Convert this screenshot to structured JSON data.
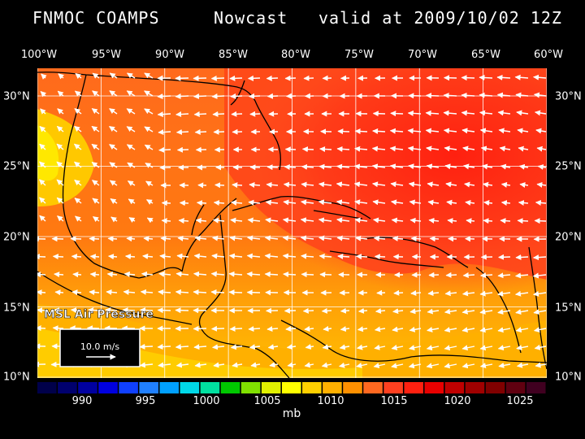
{
  "header": {
    "model": "FNMOC COAMPS",
    "product": "Nowcast",
    "valid": "valid at 2009/10/02 12Z"
  },
  "axes": {
    "lon_labels": [
      "100°W",
      "95°W",
      "90°W",
      "85°W",
      "80°W",
      "75°W",
      "70°W",
      "65°W",
      "60°W"
    ],
    "lat_labels": [
      "30°N",
      "25°N",
      "20°N",
      "15°N",
      "10°N"
    ]
  },
  "overlay": {
    "field_label": "MSL Air Pressure",
    "vector_key": "10.0 m/s"
  },
  "colorbar": {
    "ticks": [
      "990",
      "995",
      "1000",
      "1005",
      "1010",
      "1015",
      "1020",
      "1025"
    ],
    "unit": "mb",
    "colors": [
      "#00004a",
      "#00006e",
      "#0000a0",
      "#0000e0",
      "#1040ff",
      "#2080ff",
      "#00a0ff",
      "#00d8e8",
      "#00e0a0",
      "#00c800",
      "#80e000",
      "#e0f000",
      "#ffff00",
      "#ffd000",
      "#ffb000",
      "#ff9000",
      "#ff6820",
      "#ff4020",
      "#ff2010",
      "#e80000",
      "#c00000",
      "#a00000",
      "#800000",
      "#600010",
      "#400020"
    ]
  },
  "palette": {
    "land_line": "#000000",
    "grid": "#ffffff",
    "arrow": "#ffffff"
  }
}
